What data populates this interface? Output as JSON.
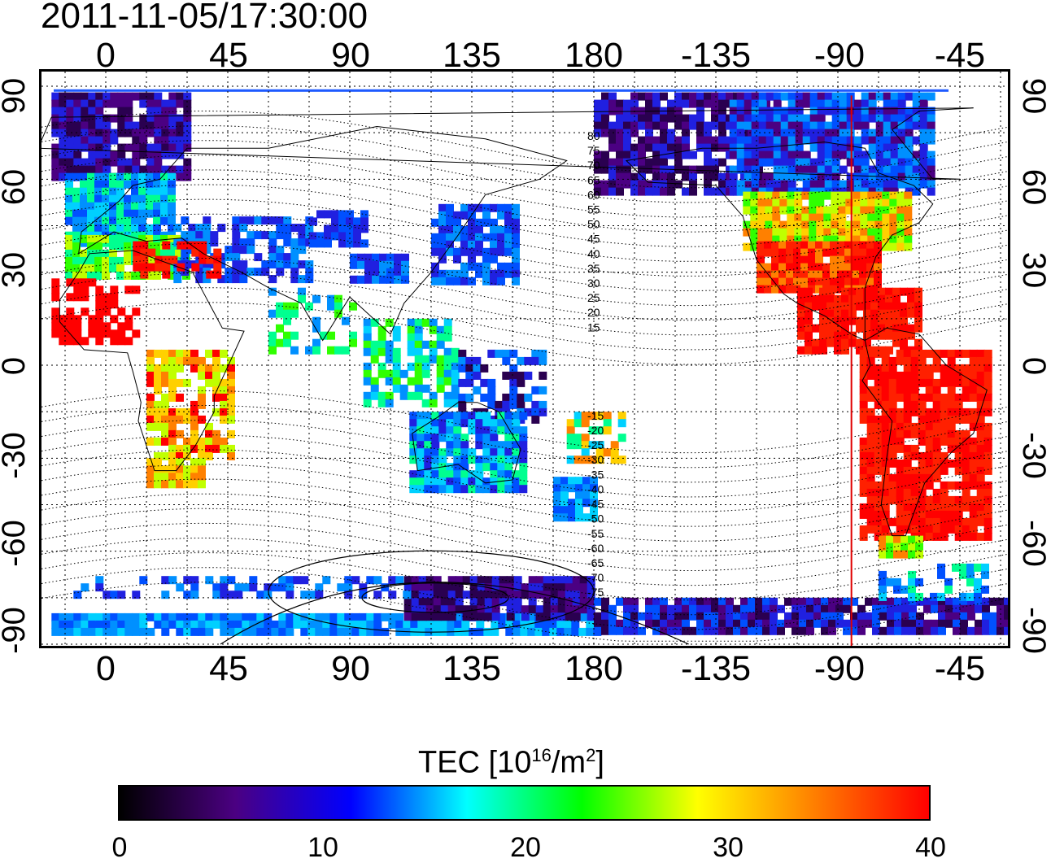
{
  "title": "2011-11-05/17:30:00",
  "x_ticks": [
    "0",
    "45",
    "90",
    "135",
    "180",
    "-135",
    "-90",
    "-45"
  ],
  "y_ticks": [
    "90",
    "60",
    "30",
    "0",
    "-30",
    "-60",
    "-90"
  ],
  "colorbar": {
    "label_main": "TEC  [10",
    "label_exp1": "16",
    "label_mid": "/m",
    "label_exp2": "2",
    "label_end": "]",
    "ticks": [
      "0",
      "10",
      "20",
      "30",
      "40"
    ],
    "stops": [
      "#000000",
      "#4b0082",
      "#0000ff",
      "#00ffff",
      "#00ff00",
      "#ffff00",
      "#ff8000",
      "#ff0000"
    ]
  },
  "mag_lat_labels": [
    "80",
    "75",
    "70",
    "65",
    "60",
    "55",
    "50",
    "45",
    "40",
    "35",
    "30",
    "25",
    "20",
    "15",
    "-15",
    "-20",
    "-25",
    "-30",
    "-35",
    "-40",
    "-45",
    "-50",
    "-55",
    "-60",
    "-65",
    "-70",
    "-75"
  ],
  "terminator_lon": -85
}
